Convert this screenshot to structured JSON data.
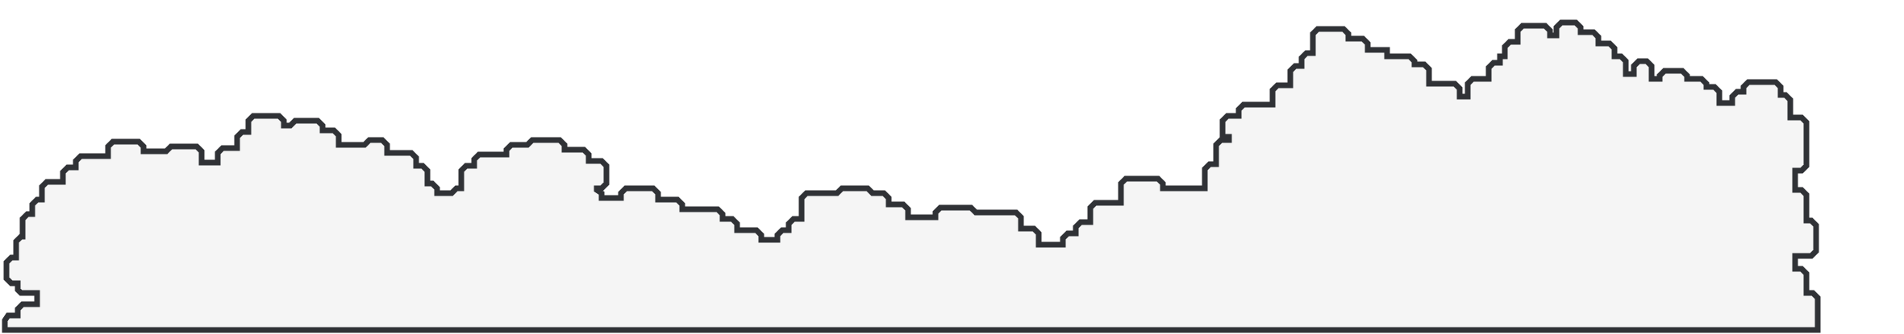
{
  "shape": {
    "name": "stepped-skyline-outline",
    "fill": "#f5f5f5",
    "stroke": "#303236",
    "background": "#ffffff"
  }
}
